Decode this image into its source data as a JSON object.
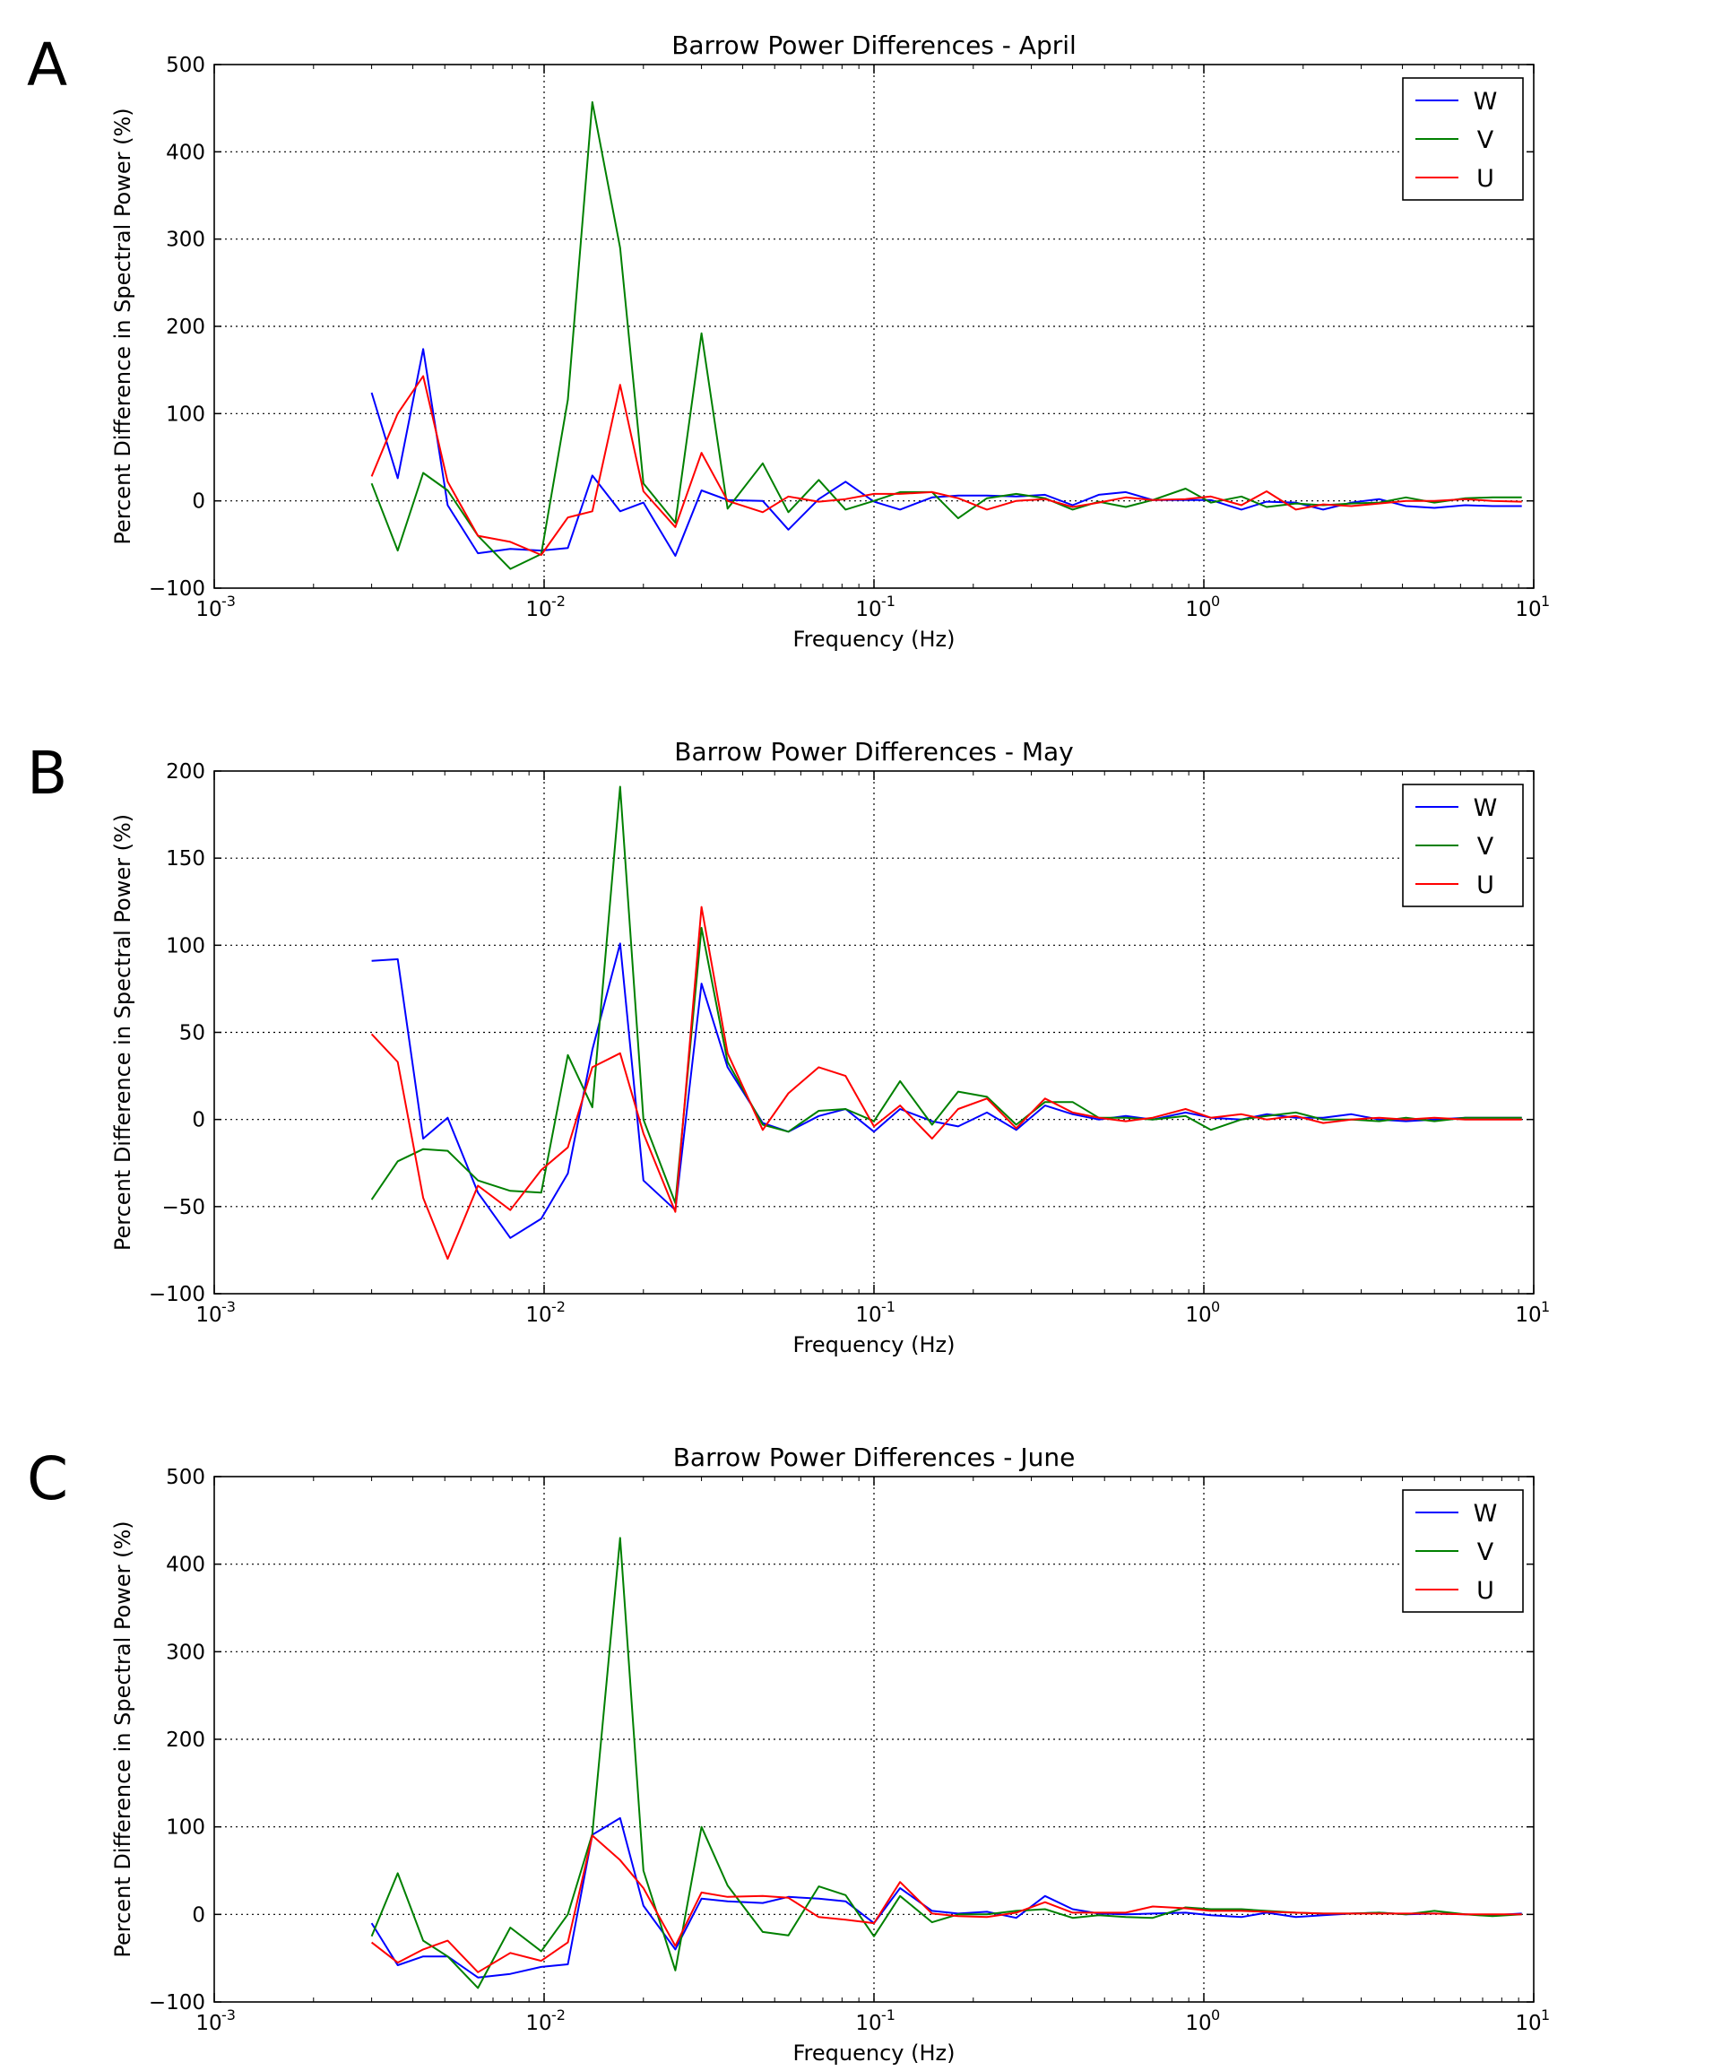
{
  "chart_data": [
    {
      "panel_label": "A",
      "type": "line",
      "title": "Barrow Power Differences - April",
      "xlabel": "Frequency (Hz)",
      "ylabel": "Percent Difference in Spectral Power (%)",
      "xscale": "log",
      "xlim": [
        0.001,
        10
      ],
      "ylim": [
        -100,
        500
      ],
      "yticks": [
        "500",
        "400",
        "300",
        "200",
        "100",
        "0",
        "−100"
      ],
      "xtick_labels": [
        {
          "base": "10",
          "exp": "-3"
        },
        {
          "base": "10",
          "exp": "-2"
        },
        {
          "base": "10",
          "exp": "-1"
        },
        {
          "base": "10",
          "exp": "0"
        },
        {
          "base": "10",
          "exp": "1"
        }
      ],
      "grid": true,
      "legend": "top-right",
      "x": [
        0.003,
        0.0036,
        0.0043,
        0.0051,
        0.0063,
        0.0079,
        0.0098,
        0.0118,
        0.014,
        0.017,
        0.02,
        0.025,
        0.03,
        0.036,
        0.046,
        0.055,
        0.068,
        0.082,
        0.1,
        0.12,
        0.15,
        0.18,
        0.22,
        0.27,
        0.33,
        0.4,
        0.48,
        0.58,
        0.7,
        0.88,
        1.05,
        1.3,
        1.55,
        1.9,
        2.3,
        2.8,
        3.4,
        4.1,
        5.0,
        6.2,
        7.5,
        9.2
      ],
      "series": [
        {
          "name": "W",
          "color": "#0000ff",
          "values": [
            124,
            26,
            174,
            -5,
            -60,
            -55,
            -57,
            -54,
            29,
            -12,
            -2,
            -63,
            12,
            1,
            0,
            -33,
            2,
            22,
            -1,
            -10,
            4,
            6,
            6,
            5,
            7,
            -5,
            7,
            10,
            1,
            1,
            1,
            -10,
            -1,
            -2,
            -10,
            -2,
            2,
            -6,
            -8,
            -5,
            -6,
            -6
          ]
        },
        {
          "name": "V",
          "color": "#008000",
          "values": [
            20,
            -57,
            32,
            12,
            -40,
            -78,
            -61,
            116,
            457,
            290,
            20,
            -25,
            192,
            -9,
            43,
            -13,
            24,
            -10,
            0,
            10,
            10,
            -20,
            3,
            8,
            3,
            -10,
            -1,
            -7,
            1,
            14,
            -2,
            5,
            -7,
            -3,
            -5,
            -3,
            -2,
            4,
            -2,
            3,
            4,
            4
          ]
        },
        {
          "name": "U",
          "color": "#ff0000",
          "values": [
            28,
            100,
            143,
            22,
            -40,
            -47,
            -62,
            -19,
            -12,
            133,
            11,
            -30,
            55,
            0,
            -13,
            5,
            -1,
            2,
            8,
            8,
            10,
            3,
            -10,
            0,
            2,
            -7,
            -2,
            4,
            1,
            2,
            5,
            -5,
            11,
            -10,
            -4,
            -6,
            -3,
            0,
            0,
            2,
            0,
            -1
          ]
        }
      ]
    },
    {
      "panel_label": "B",
      "type": "line",
      "title": "Barrow Power Differences - May",
      "xlabel": "Frequency (Hz)",
      "ylabel": "Percent Difference in Spectral Power (%)",
      "xscale": "log",
      "xlim": [
        0.001,
        10
      ],
      "ylim": [
        -100,
        200
      ],
      "yticks": [
        "200",
        "150",
        "100",
        "50",
        "0",
        "−50",
        "−100"
      ],
      "xtick_labels": [
        {
          "base": "10",
          "exp": "-3"
        },
        {
          "base": "10",
          "exp": "-2"
        },
        {
          "base": "10",
          "exp": "-1"
        },
        {
          "base": "10",
          "exp": "0"
        },
        {
          "base": "10",
          "exp": "1"
        }
      ],
      "grid": true,
      "legend": "top-right",
      "x": [
        0.003,
        0.0036,
        0.0043,
        0.0051,
        0.0063,
        0.0079,
        0.0098,
        0.0118,
        0.014,
        0.017,
        0.02,
        0.025,
        0.03,
        0.036,
        0.046,
        0.055,
        0.068,
        0.082,
        0.1,
        0.12,
        0.15,
        0.18,
        0.22,
        0.27,
        0.33,
        0.4,
        0.48,
        0.58,
        0.7,
        0.88,
        1.05,
        1.3,
        1.55,
        1.9,
        2.3,
        2.8,
        3.4,
        4.1,
        5.0,
        6.2,
        7.5,
        9.2
      ],
      "series": [
        {
          "name": "W",
          "color": "#0000ff",
          "values": [
            91,
            92,
            -11,
            1,
            -42,
            -68,
            -57,
            -31,
            40,
            101,
            -35,
            -52,
            78,
            30,
            -2,
            -7,
            2,
            6,
            -7,
            6,
            -1,
            -4,
            4,
            -6,
            8,
            3,
            0,
            2,
            0,
            4,
            1,
            0,
            3,
            1,
            1,
            3,
            0,
            -1,
            0,
            1,
            1,
            1
          ]
        },
        {
          "name": "V",
          "color": "#008000",
          "values": [
            -46,
            -24,
            -17,
            -18,
            -35,
            -41,
            -42,
            37,
            7,
            191,
            0,
            -48,
            110,
            33,
            -3,
            -7,
            5,
            6,
            -1,
            22,
            -3,
            16,
            13,
            -3,
            10,
            10,
            1,
            1,
            0,
            2,
            -6,
            0,
            2,
            4,
            0,
            0,
            -1,
            1,
            -1,
            1,
            1,
            1
          ]
        },
        {
          "name": "U",
          "color": "#ff0000",
          "values": [
            49,
            33,
            -45,
            -80,
            -38,
            -52,
            -29,
            -16,
            30,
            38,
            -8,
            -53,
            122,
            38,
            -6,
            15,
            30,
            25,
            -4,
            8,
            -11,
            6,
            12,
            -5,
            12,
            4,
            1,
            -1,
            1,
            6,
            1,
            3,
            0,
            2,
            -2,
            0,
            1,
            0,
            1,
            0,
            0,
            0
          ]
        }
      ]
    },
    {
      "panel_label": "C",
      "type": "line",
      "title": "Barrow Power Differences - June",
      "xlabel": "Frequency (Hz)",
      "ylabel": "Percent Difference in Spectral Power (%)",
      "xscale": "log",
      "xlim": [
        0.001,
        10
      ],
      "ylim": [
        -100,
        500
      ],
      "yticks": [
        "500",
        "400",
        "300",
        "200",
        "100",
        "0",
        "−100"
      ],
      "xtick_labels": [
        {
          "base": "10",
          "exp": "-3"
        },
        {
          "base": "10",
          "exp": "-2"
        },
        {
          "base": "10",
          "exp": "-1"
        },
        {
          "base": "10",
          "exp": "0"
        },
        {
          "base": "10",
          "exp": "1"
        }
      ],
      "grid": true,
      "legend": "top-right",
      "x": [
        0.003,
        0.0036,
        0.0043,
        0.0051,
        0.0063,
        0.0079,
        0.0098,
        0.0118,
        0.014,
        0.017,
        0.02,
        0.025,
        0.03,
        0.036,
        0.046,
        0.055,
        0.068,
        0.082,
        0.1,
        0.12,
        0.15,
        0.18,
        0.22,
        0.27,
        0.33,
        0.4,
        0.48,
        0.58,
        0.7,
        0.88,
        1.05,
        1.3,
        1.55,
        1.9,
        2.3,
        2.8,
        3.4,
        4.1,
        5.0,
        6.2,
        7.5,
        9.2
      ],
      "series": [
        {
          "name": "W",
          "color": "#0000ff",
          "values": [
            -10,
            -58,
            -48,
            -48,
            -72,
            -68,
            -60,
            -57,
            91,
            110,
            10,
            -40,
            18,
            15,
            13,
            20,
            18,
            15,
            -10,
            30,
            4,
            1,
            3,
            -4,
            21,
            6,
            1,
            0,
            1,
            2,
            -1,
            -3,
            2,
            -3,
            -1,
            1,
            2,
            0,
            1,
            0,
            -1,
            1
          ]
        },
        {
          "name": "V",
          "color": "#008000",
          "values": [
            -25,
            47,
            -30,
            -48,
            -84,
            -15,
            -42,
            0,
            92,
            430,
            50,
            -64,
            100,
            33,
            -20,
            -24,
            32,
            22,
            -25,
            21,
            -9,
            0,
            0,
            4,
            6,
            -4,
            -1,
            -3,
            -4,
            8,
            6,
            6,
            4,
            2,
            1,
            1,
            2,
            0,
            4,
            0,
            -2,
            0
          ]
        },
        {
          "name": "U",
          "color": "#ff0000",
          "values": [
            -32,
            -55,
            -40,
            -30,
            -66,
            -44,
            -53,
            -32,
            90,
            62,
            30,
            -36,
            25,
            20,
            21,
            19,
            -3,
            -6,
            -10,
            37,
            1,
            -2,
            -3,
            2,
            14,
            2,
            2,
            2,
            9,
            7,
            4,
            4,
            3,
            2,
            1,
            1,
            1,
            1,
            1,
            0,
            0,
            0
          ]
        }
      ]
    }
  ]
}
